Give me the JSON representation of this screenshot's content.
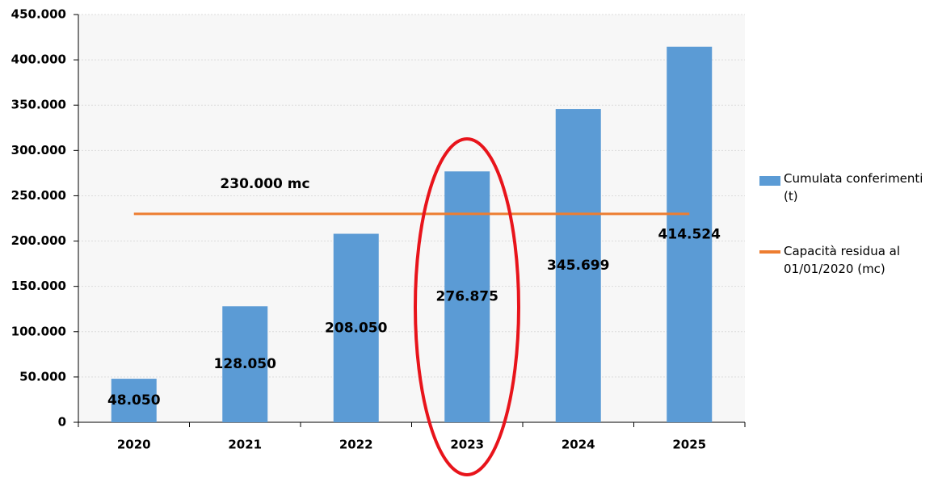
{
  "chart_data": {
    "type": "bar",
    "categories": [
      "2020",
      "2021",
      "2022",
      "2023",
      "2024",
      "2025"
    ],
    "series": [
      {
        "name": "Cumulata conferimenti (t)",
        "type": "bar",
        "color": "#5b9bd5",
        "values": [
          48050,
          128050,
          208050,
          276875,
          345699,
          414524
        ],
        "value_labels": [
          "48.050",
          "128.050",
          "208.050",
          "276.875",
          "345.699",
          "414.524"
        ]
      },
      {
        "name": "Capacità residua al 01/01/2020 (mc)",
        "type": "line",
        "color": "#ed7d31",
        "values": [
          230000,
          230000,
          230000,
          230000,
          230000,
          230000
        ]
      }
    ],
    "annotations": [
      {
        "text": "230.000 mc"
      }
    ],
    "ylim": [
      0,
      450000
    ],
    "yticks": [
      0,
      {
        "value": 50000,
        "label": "50.000"
      },
      {
        "value": 100000,
        "label": "100.000"
      },
      {
        "value": 150000,
        "label": "150.000"
      },
      {
        "value": 200000,
        "label": "200.000"
      },
      {
        "value": 250000,
        "label": "250.000"
      },
      {
        "value": 300000,
        "label": "300.000"
      },
      {
        "value": 350000,
        "label": "350.000"
      },
      {
        "value": 400000,
        "label": "400.000"
      },
      {
        "value": 450000,
        "label": "450.000"
      }
    ],
    "grid": true,
    "legend": "right"
  }
}
